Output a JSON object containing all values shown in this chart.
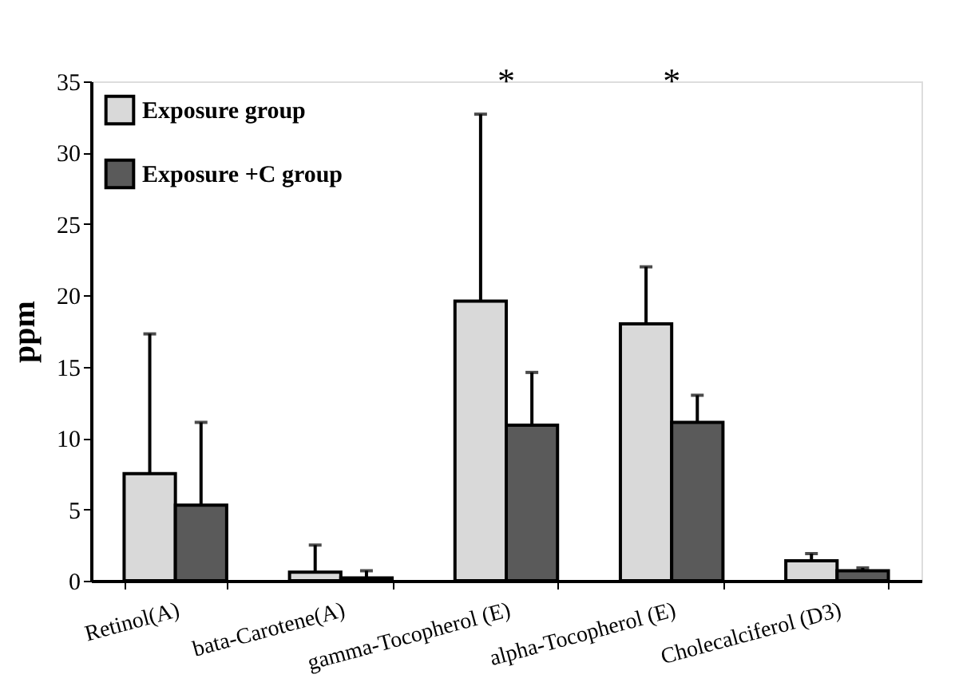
{
  "chart_data": {
    "type": "bar",
    "ylabel": "ppm",
    "categories": [
      "Retinol(A)",
      "bata-Carotene(A)",
      "gamma-Tocopherol (E)",
      "alpha-Tocopherol (E)",
      "Cholecalciferol (D3)"
    ],
    "series": [
      {
        "name": "Exposure group",
        "color": "#d9d9d9",
        "values": [
          7.5,
          0.6,
          19.6,
          18.0,
          1.4
        ],
        "errors": [
          [
            7.5,
            17.3
          ],
          [
            0.6,
            2.5
          ],
          [
            19.6,
            32.7
          ],
          [
            18.0,
            22.0
          ],
          [
            1.4,
            1.9
          ]
        ]
      },
      {
        "name": "Exposure +C group",
        "color": "#5a5a5a",
        "values": [
          5.3,
          0.2,
          10.9,
          11.1,
          0.7
        ],
        "errors": [
          [
            5.3,
            11.1
          ],
          [
            0.2,
            0.7
          ],
          [
            10.9,
            14.6
          ],
          [
            11.1,
            13.0
          ],
          [
            0.7,
            0.9
          ]
        ]
      }
    ],
    "ylim": [
      0,
      35
    ],
    "yticks": [
      0,
      5,
      10,
      15,
      20,
      25,
      30,
      35
    ],
    "grid": false,
    "legend": "top left",
    "annotations": [
      "*",
      "*"
    ]
  }
}
